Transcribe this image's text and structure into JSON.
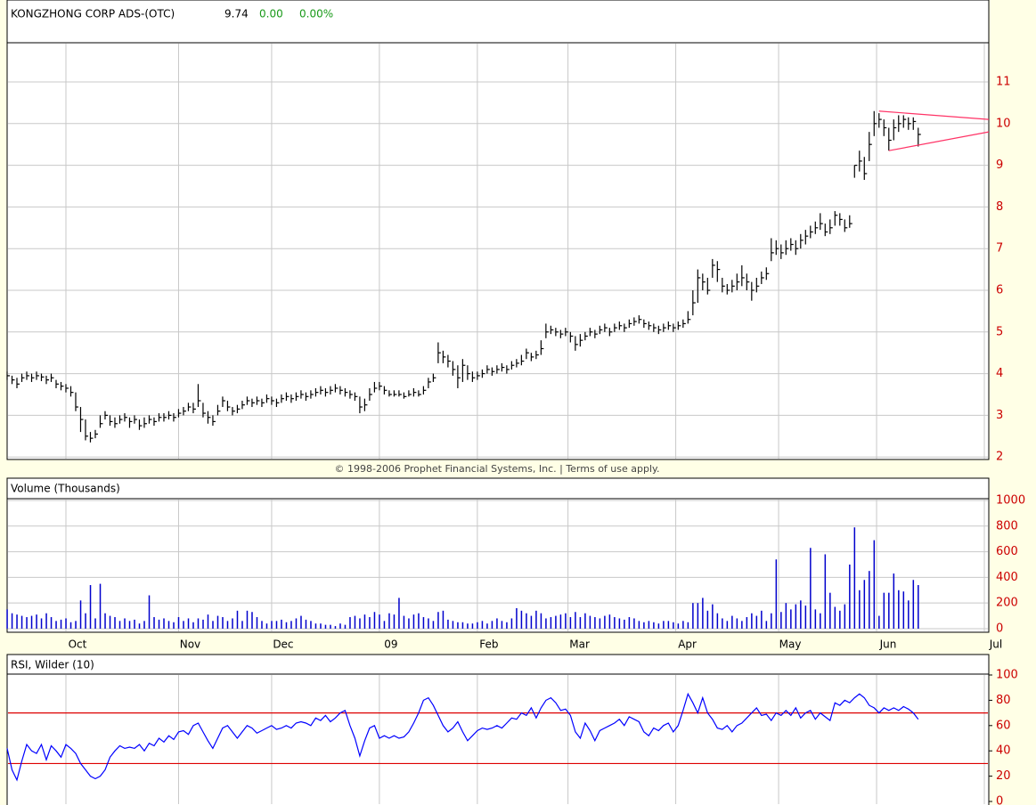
{
  "header": {
    "title": "KONGZHONG CORP ADS-(OTC)",
    "price": "9.74",
    "change": "0.00",
    "change_pct": "0.00%"
  },
  "footer": "© 1998-2006 Prophet Financial Systems, Inc. | Terms of use apply.",
  "x_axis": {
    "xlim": [
      0,
      199.5
    ],
    "xticks": [
      {
        "value": 12,
        "label": "Oct"
      },
      {
        "value": 35,
        "label": "Nov"
      },
      {
        "value": 54,
        "label": "Dec"
      },
      {
        "value": 76,
        "label": "09"
      },
      {
        "value": 96,
        "label": "Feb"
      },
      {
        "value": 114.5,
        "label": "Mar"
      },
      {
        "value": 136.5,
        "label": "Apr"
      },
      {
        "value": 157.5,
        "label": "May"
      },
      {
        "value": 177.5,
        "label": "Jun"
      },
      {
        "value": 199.5,
        "label": "Jul"
      }
    ]
  },
  "chart_data": [
    {
      "type": "ohlc",
      "color": "#000000",
      "ylim": [
        1.94,
        11.94
      ],
      "yticks": [
        2,
        3,
        4,
        5,
        6,
        7,
        8,
        9,
        10,
        11
      ],
      "grid": true,
      "high": [
        4.05,
        3.95,
        3.9,
        4.0,
        4.05,
        4.0,
        4.05,
        4.0,
        3.95,
        4.0,
        3.85,
        3.8,
        3.75,
        3.7,
        3.55,
        3.2,
        2.9,
        2.6,
        2.65,
        3.0,
        3.1,
        3.0,
        2.95,
        3.0,
        3.05,
        2.95,
        3.0,
        2.9,
        2.95,
        3.0,
        2.95,
        3.05,
        3.05,
        3.1,
        3.05,
        3.15,
        3.2,
        3.3,
        3.3,
        3.75,
        3.3,
        3.1,
        3.0,
        3.25,
        3.45,
        3.35,
        3.2,
        3.25,
        3.35,
        3.45,
        3.4,
        3.45,
        3.4,
        3.5,
        3.45,
        3.4,
        3.5,
        3.55,
        3.5,
        3.55,
        3.6,
        3.55,
        3.6,
        3.65,
        3.7,
        3.65,
        3.7,
        3.75,
        3.7,
        3.65,
        3.6,
        3.55,
        3.45,
        3.4,
        3.65,
        3.8,
        3.8,
        3.7,
        3.6,
        3.6,
        3.6,
        3.55,
        3.6,
        3.65,
        3.6,
        3.7,
        3.9,
        4.0,
        4.75,
        4.55,
        4.45,
        4.3,
        4.2,
        4.35,
        4.2,
        4.05,
        4.05,
        4.1,
        4.2,
        4.15,
        4.2,
        4.25,
        4.2,
        4.3,
        4.35,
        4.45,
        4.6,
        4.5,
        4.55,
        4.8,
        5.2,
        5.15,
        5.1,
        5.05,
        5.1,
        5.0,
        4.9,
        4.95,
        5.0,
        5.1,
        5.05,
        5.15,
        5.2,
        5.1,
        5.2,
        5.25,
        5.2,
        5.3,
        5.35,
        5.4,
        5.3,
        5.25,
        5.2,
        5.15,
        5.2,
        5.25,
        5.2,
        5.25,
        5.3,
        5.5,
        6.0,
        6.5,
        6.4,
        6.3,
        6.75,
        6.7,
        6.3,
        6.15,
        6.25,
        6.4,
        6.6,
        6.4,
        6.2,
        6.3,
        6.45,
        6.55,
        7.25,
        7.2,
        7.1,
        7.2,
        7.25,
        7.2,
        7.35,
        7.45,
        7.55,
        7.65,
        7.85,
        7.6,
        7.7,
        7.9,
        7.85,
        7.7,
        7.8,
        9.0,
        9.35,
        9.2,
        9.8,
        10.3,
        10.25,
        10.1,
        9.9,
        10.1,
        10.2,
        10.2,
        10.15,
        10.15,
        9.9
      ],
      "low": [
        3.85,
        3.75,
        3.65,
        3.8,
        3.85,
        3.8,
        3.85,
        3.82,
        3.75,
        3.8,
        3.65,
        3.6,
        3.55,
        3.45,
        3.1,
        2.6,
        2.4,
        2.35,
        2.45,
        2.7,
        2.9,
        2.75,
        2.7,
        2.8,
        2.85,
        2.7,
        2.8,
        2.65,
        2.7,
        2.8,
        2.75,
        2.85,
        2.85,
        2.9,
        2.85,
        2.95,
        3.0,
        3.1,
        3.05,
        3.2,
        2.95,
        2.8,
        2.75,
        3.0,
        3.2,
        3.1,
        3.0,
        3.05,
        3.15,
        3.25,
        3.2,
        3.25,
        3.2,
        3.3,
        3.25,
        3.2,
        3.3,
        3.35,
        3.3,
        3.35,
        3.4,
        3.35,
        3.4,
        3.45,
        3.5,
        3.45,
        3.5,
        3.55,
        3.5,
        3.45,
        3.4,
        3.35,
        3.05,
        3.1,
        3.35,
        3.55,
        3.6,
        3.5,
        3.45,
        3.45,
        3.45,
        3.4,
        3.45,
        3.45,
        3.45,
        3.5,
        3.65,
        3.8,
        4.25,
        4.25,
        4.15,
        3.95,
        3.65,
        3.8,
        3.85,
        3.8,
        3.85,
        3.9,
        4.0,
        3.95,
        4.0,
        4.05,
        4.0,
        4.1,
        4.15,
        4.2,
        4.35,
        4.3,
        4.35,
        4.45,
        4.85,
        4.95,
        4.9,
        4.85,
        4.9,
        4.75,
        4.55,
        4.65,
        4.8,
        4.9,
        4.85,
        4.95,
        5.0,
        4.9,
        5.0,
        5.05,
        5.0,
        5.1,
        5.15,
        5.2,
        5.1,
        5.05,
        5.0,
        4.95,
        5.0,
        5.05,
        5.0,
        5.05,
        5.1,
        5.2,
        5.4,
        5.7,
        6.0,
        5.9,
        6.3,
        6.2,
        5.95,
        5.9,
        5.95,
        6.0,
        6.1,
        6.0,
        5.75,
        5.95,
        6.15,
        6.25,
        6.7,
        6.85,
        6.75,
        6.85,
        6.95,
        6.85,
        7.0,
        7.1,
        7.25,
        7.35,
        7.45,
        7.3,
        7.35,
        7.55,
        7.55,
        7.4,
        7.5,
        8.7,
        8.85,
        8.65,
        9.1,
        9.7,
        9.9,
        9.7,
        9.35,
        9.6,
        9.8,
        9.9,
        9.85,
        9.85,
        9.45
      ],
      "close": [
        3.95,
        3.85,
        3.75,
        3.9,
        3.95,
        3.9,
        3.95,
        3.92,
        3.85,
        3.9,
        3.75,
        3.7,
        3.65,
        3.55,
        3.2,
        2.9,
        2.5,
        2.45,
        2.55,
        2.8,
        3.0,
        2.85,
        2.8,
        2.9,
        2.95,
        2.85,
        2.9,
        2.75,
        2.8,
        2.9,
        2.85,
        2.95,
        2.95,
        3.0,
        2.95,
        3.05,
        3.1,
        3.2,
        3.15,
        3.35,
        3.05,
        2.95,
        2.85,
        3.1,
        3.35,
        3.2,
        3.1,
        3.15,
        3.25,
        3.35,
        3.3,
        3.35,
        3.3,
        3.4,
        3.35,
        3.3,
        3.4,
        3.45,
        3.4,
        3.45,
        3.5,
        3.45,
        3.5,
        3.55,
        3.6,
        3.55,
        3.6,
        3.65,
        3.6,
        3.55,
        3.5,
        3.45,
        3.2,
        3.25,
        3.5,
        3.65,
        3.7,
        3.6,
        3.5,
        3.5,
        3.5,
        3.45,
        3.5,
        3.55,
        3.5,
        3.6,
        3.8,
        3.9,
        4.5,
        4.4,
        4.3,
        4.1,
        3.9,
        4.2,
        4.0,
        3.9,
        3.95,
        4.0,
        4.1,
        4.05,
        4.1,
        4.15,
        4.1,
        4.2,
        4.25,
        4.3,
        4.5,
        4.4,
        4.45,
        4.6,
        5.0,
        5.05,
        5.0,
        4.95,
        5.0,
        4.9,
        4.7,
        4.8,
        4.9,
        5.0,
        4.95,
        5.05,
        5.1,
        5.0,
        5.1,
        5.15,
        5.1,
        5.2,
        5.25,
        5.3,
        5.2,
        5.15,
        5.1,
        5.05,
        5.1,
        5.15,
        5.1,
        5.15,
        5.2,
        5.3,
        5.7,
        6.3,
        6.2,
        6.0,
        6.6,
        6.5,
        6.1,
        6.0,
        6.1,
        6.2,
        6.3,
        6.2,
        6.0,
        6.1,
        6.3,
        6.4,
        6.9,
        7.0,
        6.9,
        7.0,
        7.1,
        7.0,
        7.2,
        7.3,
        7.4,
        7.5,
        7.6,
        7.4,
        7.5,
        7.8,
        7.7,
        7.5,
        7.6,
        9.0,
        9.1,
        8.8,
        9.5,
        10.0,
        10.1,
        9.9,
        9.6,
        9.9,
        10.0,
        10.1,
        10.0,
        10.05,
        9.74
      ],
      "trendlines": {
        "color": "#ff3366",
        "lines": [
          {
            "x": [
              178,
              200.4
            ],
            "y": [
              10.3,
              10.1
            ]
          },
          {
            "x": [
              180,
              200.4
            ],
            "y": [
              9.35,
              9.8
            ]
          }
        ]
      }
    },
    {
      "type": "bar",
      "title": "Volume (Thousands)",
      "color": "#0000cc",
      "ylim": [
        -28,
        1014
      ],
      "yticks": [
        0,
        200,
        400,
        600,
        800,
        1000
      ],
      "grid": true,
      "values": [
        150,
        120,
        110,
        100,
        90,
        100,
        110,
        80,
        120,
        90,
        60,
        70,
        80,
        50,
        60,
        220,
        120,
        340,
        80,
        350,
        120,
        100,
        90,
        60,
        80,
        60,
        70,
        40,
        60,
        260,
        90,
        70,
        80,
        60,
        50,
        90,
        60,
        80,
        50,
        80,
        70,
        110,
        60,
        100,
        90,
        60,
        80,
        140,
        60,
        140,
        130,
        90,
        60,
        40,
        60,
        60,
        70,
        50,
        60,
        80,
        100,
        70,
        60,
        40,
        40,
        30,
        30,
        20,
        40,
        30,
        90,
        100,
        80,
        110,
        90,
        130,
        110,
        60,
        120,
        110,
        240,
        100,
        80,
        110,
        120,
        90,
        80,
        60,
        130,
        140,
        70,
        60,
        50,
        50,
        40,
        40,
        50,
        60,
        40,
        60,
        80,
        60,
        50,
        80,
        160,
        140,
        120,
        100,
        140,
        120,
        80,
        90,
        100,
        110,
        120,
        90,
        130,
        90,
        120,
        100,
        90,
        80,
        100,
        110,
        90,
        80,
        70,
        90,
        80,
        60,
        50,
        60,
        50,
        40,
        60,
        60,
        50,
        40,
        60,
        50,
        200,
        200,
        240,
        140,
        190,
        120,
        80,
        60,
        100,
        80,
        60,
        90,
        120,
        100,
        140,
        60,
        120,
        540,
        130,
        200,
        150,
        190,
        220,
        180,
        630,
        150,
        120,
        580,
        280,
        170,
        140,
        190,
        500,
        790,
        300,
        380,
        450,
        690,
        100,
        280,
        280,
        430,
        300,
        290,
        220,
        380,
        340
      ]
    },
    {
      "type": "line",
      "title": "RSI, Wilder (10)",
      "color": "#0000ff",
      "ylim": [
        -2.8,
        100.7
      ],
      "yticks": [
        0,
        20,
        40,
        60,
        80,
        100
      ],
      "grid": false,
      "reference_lines": {
        "color": "#dd0000",
        "values": [
          70,
          30
        ]
      },
      "values": [
        42,
        25,
        17,
        32,
        45,
        40,
        38,
        45,
        33,
        44,
        40,
        35,
        45,
        42,
        38,
        30,
        25,
        20,
        18,
        20,
        25,
        35,
        40,
        44,
        42,
        43,
        42,
        45,
        40,
        46,
        44,
        50,
        47,
        52,
        49,
        55,
        56,
        53,
        60,
        62,
        55,
        48,
        42,
        50,
        58,
        60,
        55,
        50,
        55,
        60,
        58,
        54,
        56,
        58,
        60,
        57,
        58,
        60,
        58,
        62,
        63,
        62,
        60,
        66,
        64,
        68,
        63,
        66,
        70,
        72,
        60,
        50,
        36,
        48,
        58,
        60,
        50,
        52,
        50,
        52,
        50,
        51,
        55,
        62,
        70,
        80,
        82,
        76,
        68,
        60,
        55,
        58,
        63,
        55,
        48,
        52,
        56,
        58,
        57,
        58,
        60,
        58,
        62,
        66,
        65,
        70,
        68,
        74,
        66,
        74,
        80,
        82,
        78,
        72,
        73,
        68,
        55,
        50,
        62,
        56,
        48,
        56,
        58,
        60,
        62,
        65,
        60,
        67,
        65,
        63,
        55,
        52,
        58,
        56,
        60,
        62,
        55,
        60,
        72,
        85,
        78,
        70,
        82,
        70,
        65,
        58,
        57,
        60,
        55,
        60,
        62,
        66,
        70,
        74,
        68,
        69,
        64,
        70,
        68,
        72,
        68,
        74,
        66,
        70,
        72,
        65,
        70,
        67,
        64,
        78,
        76,
        80,
        78,
        82,
        85,
        82,
        76,
        74,
        70,
        74,
        72,
        74,
        72,
        75,
        73,
        70,
        65
      ]
    }
  ]
}
